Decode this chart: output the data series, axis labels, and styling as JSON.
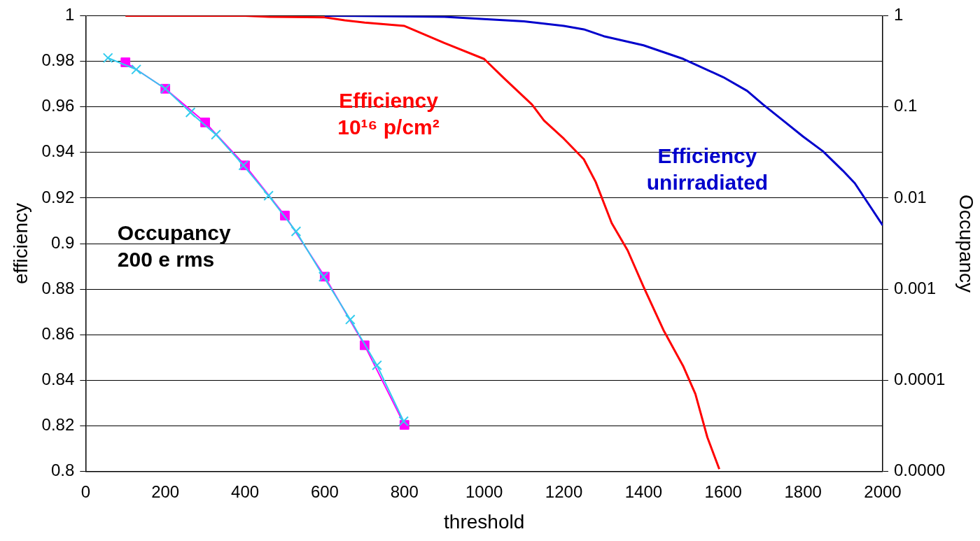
{
  "chart_data": {
    "type": "line",
    "xlabel": "threshold",
    "ylabel": "efficiency",
    "y2label": "Occupancy",
    "xlim": [
      0,
      2000
    ],
    "xticks": [
      0,
      200,
      400,
      600,
      800,
      1000,
      1200,
      1400,
      1600,
      1800,
      2000
    ],
    "ylim": [
      0.8,
      1
    ],
    "yticks": [
      0.8,
      0.82,
      0.84,
      0.86,
      0.88,
      0.9,
      0.92,
      0.94,
      0.96,
      0.98,
      1
    ],
    "y2lim": [
      1e-05,
      1
    ],
    "y2ticks": [
      {
        "value": 1e-05,
        "label": "0.0000"
      },
      0.0001,
      0.001,
      0.01,
      0.1,
      1
    ],
    "log": "y2",
    "grid": "y",
    "legend": false,
    "series": [
      {
        "name": "Efficiency\n10¹⁶ p/cm²",
        "color": "#ff0000",
        "marker": "none",
        "x": [
          100,
          400,
          460,
          600,
          650,
          700,
          800,
          900,
          1000,
          1050,
          1120,
          1150,
          1200,
          1250,
          1280,
          1320,
          1360,
          1400,
          1450,
          1500,
          1530,
          1560,
          1590
        ],
        "values": [
          1.0,
          1.0,
          0.9995,
          0.9993,
          0.998,
          0.997,
          0.9955,
          0.988,
          0.981,
          0.9725,
          0.961,
          0.954,
          0.946,
          0.937,
          0.927,
          0.909,
          0.897,
          0.881,
          0.862,
          0.846,
          0.834,
          0.815,
          0.801
        ]
      },
      {
        "name": "Efficiency\nunirradiated",
        "color": "#0000cc",
        "marker": "none",
        "x": [
          600,
          900,
          1000,
          1100,
          1200,
          1250,
          1300,
          1400,
          1500,
          1600,
          1660,
          1700,
          1750,
          1800,
          1850,
          1900,
          1930,
          2000
        ],
        "values": [
          1.0,
          0.9995,
          0.9985,
          0.9975,
          0.9955,
          0.994,
          0.991,
          0.987,
          0.981,
          0.973,
          0.967,
          0.961,
          0.954,
          0.947,
          0.9405,
          0.932,
          0.9265,
          0.908
        ]
      },
      {
        "name": "Occupancy\n200 e rms",
        "color": "#ff00ff",
        "marker": "square",
        "axis": "y2",
        "x": [
          100,
          200,
          300,
          400,
          500,
          600,
          700,
          800
        ],
        "values": [
          0.308,
          0.158,
          0.0674,
          0.0228,
          0.00641,
          0.00137,
          0.000242,
          3.24e-05
        ]
      },
      {
        "color": "#33ccee",
        "marker": "cross",
        "axis": "y2",
        "x": [
          56,
          127,
          200,
          263,
          327,
          396,
          459,
          528,
          597,
          664,
          731,
          798
        ],
        "values": [
          0.344,
          0.257,
          0.158,
          0.0868,
          0.0495,
          0.0228,
          0.0106,
          0.0043,
          0.00137,
          0.000464,
          0.000146,
          3.55e-05
        ]
      }
    ]
  }
}
